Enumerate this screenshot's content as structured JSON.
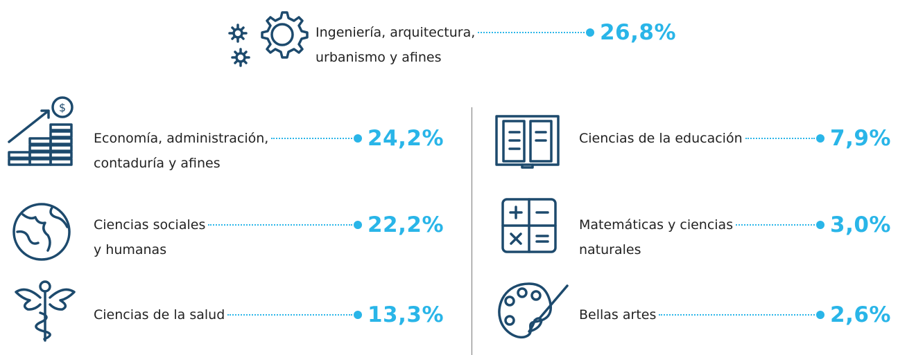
{
  "items": [
    {
      "label": [
        "Ingeniería, arquitectura,",
        "urbanismo y afines"
      ],
      "value": "26,8%"
    },
    {
      "label": [
        "Economía, administración,",
        "contaduría y afines"
      ],
      "value": "24,2%"
    },
    {
      "label": [
        "Ciencias sociales",
        "y humanas"
      ],
      "value": "22,2%"
    },
    {
      "label": [
        "Ciencias de la salud"
      ],
      "value": "13,3%"
    },
    {
      "label": [
        "Ciencias de la educación"
      ],
      "value": "7,9%"
    },
    {
      "label": [
        "Matemáticas y ciencias",
        "naturales"
      ],
      "value": "3,0%"
    },
    {
      "label": [
        "Bellas artes"
      ],
      "value": "2,6%"
    }
  ]
}
